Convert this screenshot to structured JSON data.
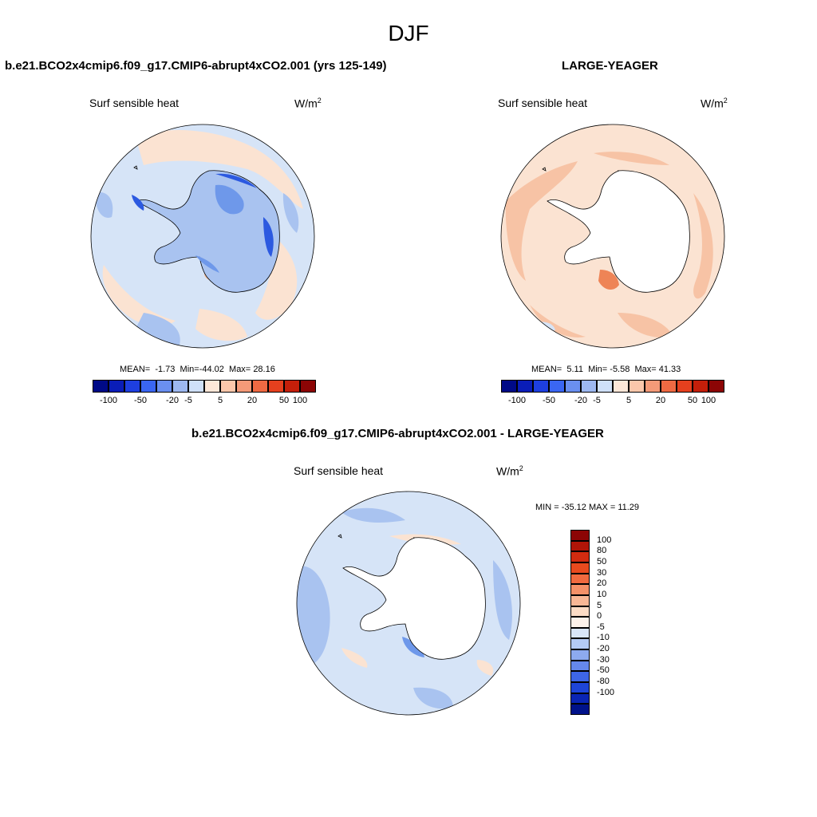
{
  "page": {
    "season": "DJF"
  },
  "colors": {
    "ocean_blue_light": "#d6e4f7",
    "ocean_blue_mid": "#a9c3f0",
    "ocean_blue_dark": "#6e98ea",
    "deep_blue": "#2c59e0",
    "ocean_warm_light": "#fbe3d2",
    "ocean_warm_mid": "#f7c3a5",
    "ocean_warm_dark": "#ee8456",
    "land_white": "#ffffff",
    "coast_line": "#000000"
  },
  "panels": {
    "test": {
      "case_title": "b.e21.BCO2x4cmip6.f09_g17.CMIP6-abrupt4xCO2.001 (yrs 125-149)",
      "variable": "Surf sensible heat",
      "units_base": "W/m",
      "units_exp": "2",
      "stats": {
        "mean_label": "MEAN=",
        "mean": "-1.73",
        "min_label": "Min=",
        "min": "-44.02",
        "max_label": "Max=",
        "max": "28.16"
      }
    },
    "obs": {
      "case_title": "LARGE-YEAGER",
      "variable": "Surf sensible heat",
      "units_base": "W/m",
      "units_exp": "2",
      "stats": {
        "mean_label": "MEAN=",
        "mean": "5.11",
        "min_label": "Min=",
        "min": "-5.58",
        "max_label": "Max=",
        "max": "41.33"
      }
    },
    "diff": {
      "case_title": "b.e21.BCO2x4cmip6.f09_g17.CMIP6-abrupt4xCO2.001 - LARGE-YEAGER",
      "variable": "Surf sensible heat",
      "units_base": "W/m",
      "units_exp": "2",
      "minmax_text": "MIN = -35.12 MAX =  11.29"
    }
  },
  "colorbar_horizontal": {
    "colors": [
      "#000a87",
      "#0a1db8",
      "#1e3fe0",
      "#3a66f2",
      "#6a8ff0",
      "#9db8f0",
      "#cfe0f8",
      "#fde7d8",
      "#fbc7ab",
      "#f49a78",
      "#ef6a43",
      "#e5401e",
      "#c41f0a",
      "#8c0505"
    ],
    "ticks": [
      "-100",
      "-50",
      "-20",
      "-5",
      "5",
      "20",
      "50",
      "100"
    ]
  },
  "colorbar_vertical": {
    "colors_top_to_bottom": [
      "#8c0505",
      "#b01508",
      "#d12b10",
      "#e84a1e",
      "#f06a3f",
      "#f49168",
      "#f8b795",
      "#fcdcc5",
      "#fdf2ea",
      "#d9e6f8",
      "#b5cbf4",
      "#8daaef",
      "#6588ec",
      "#3e66e6",
      "#1e45d8",
      "#0a25b4",
      "#00128a"
    ],
    "ticks": [
      "100",
      "80",
      "50",
      "30",
      "20",
      "10",
      "5",
      "0",
      "-5",
      "-10",
      "-20",
      "-30",
      "-50",
      "-80",
      "-100"
    ]
  }
}
